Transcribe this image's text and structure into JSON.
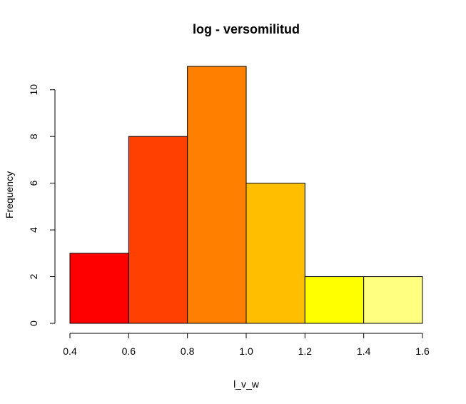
{
  "chart_data": {
    "type": "bar",
    "title": "log - versomilitud",
    "xlabel": "l_v_w",
    "ylabel": "Frequency",
    "bins": [
      {
        "start": 0.4,
        "end": 0.6,
        "count": 3,
        "color": "#FF0000"
      },
      {
        "start": 0.6,
        "end": 0.8,
        "count": 8,
        "color": "#FF4000"
      },
      {
        "start": 0.8,
        "end": 1.0,
        "count": 11,
        "color": "#FF8000"
      },
      {
        "start": 1.0,
        "end": 1.2,
        "count": 6,
        "color": "#FFBF00"
      },
      {
        "start": 1.2,
        "end": 1.4,
        "count": 2,
        "color": "#FFFF00"
      },
      {
        "start": 1.4,
        "end": 1.6,
        "count": 2,
        "color": "#FFFF80"
      }
    ],
    "x_ticks": [
      "0.4",
      "0.6",
      "0.8",
      "1.0",
      "1.2",
      "1.4",
      "1.6"
    ],
    "y_ticks": [
      "0",
      "2",
      "4",
      "6",
      "8",
      "10"
    ],
    "xlim": [
      0.4,
      1.6
    ],
    "ylim": [
      0,
      11
    ],
    "grid": false
  }
}
